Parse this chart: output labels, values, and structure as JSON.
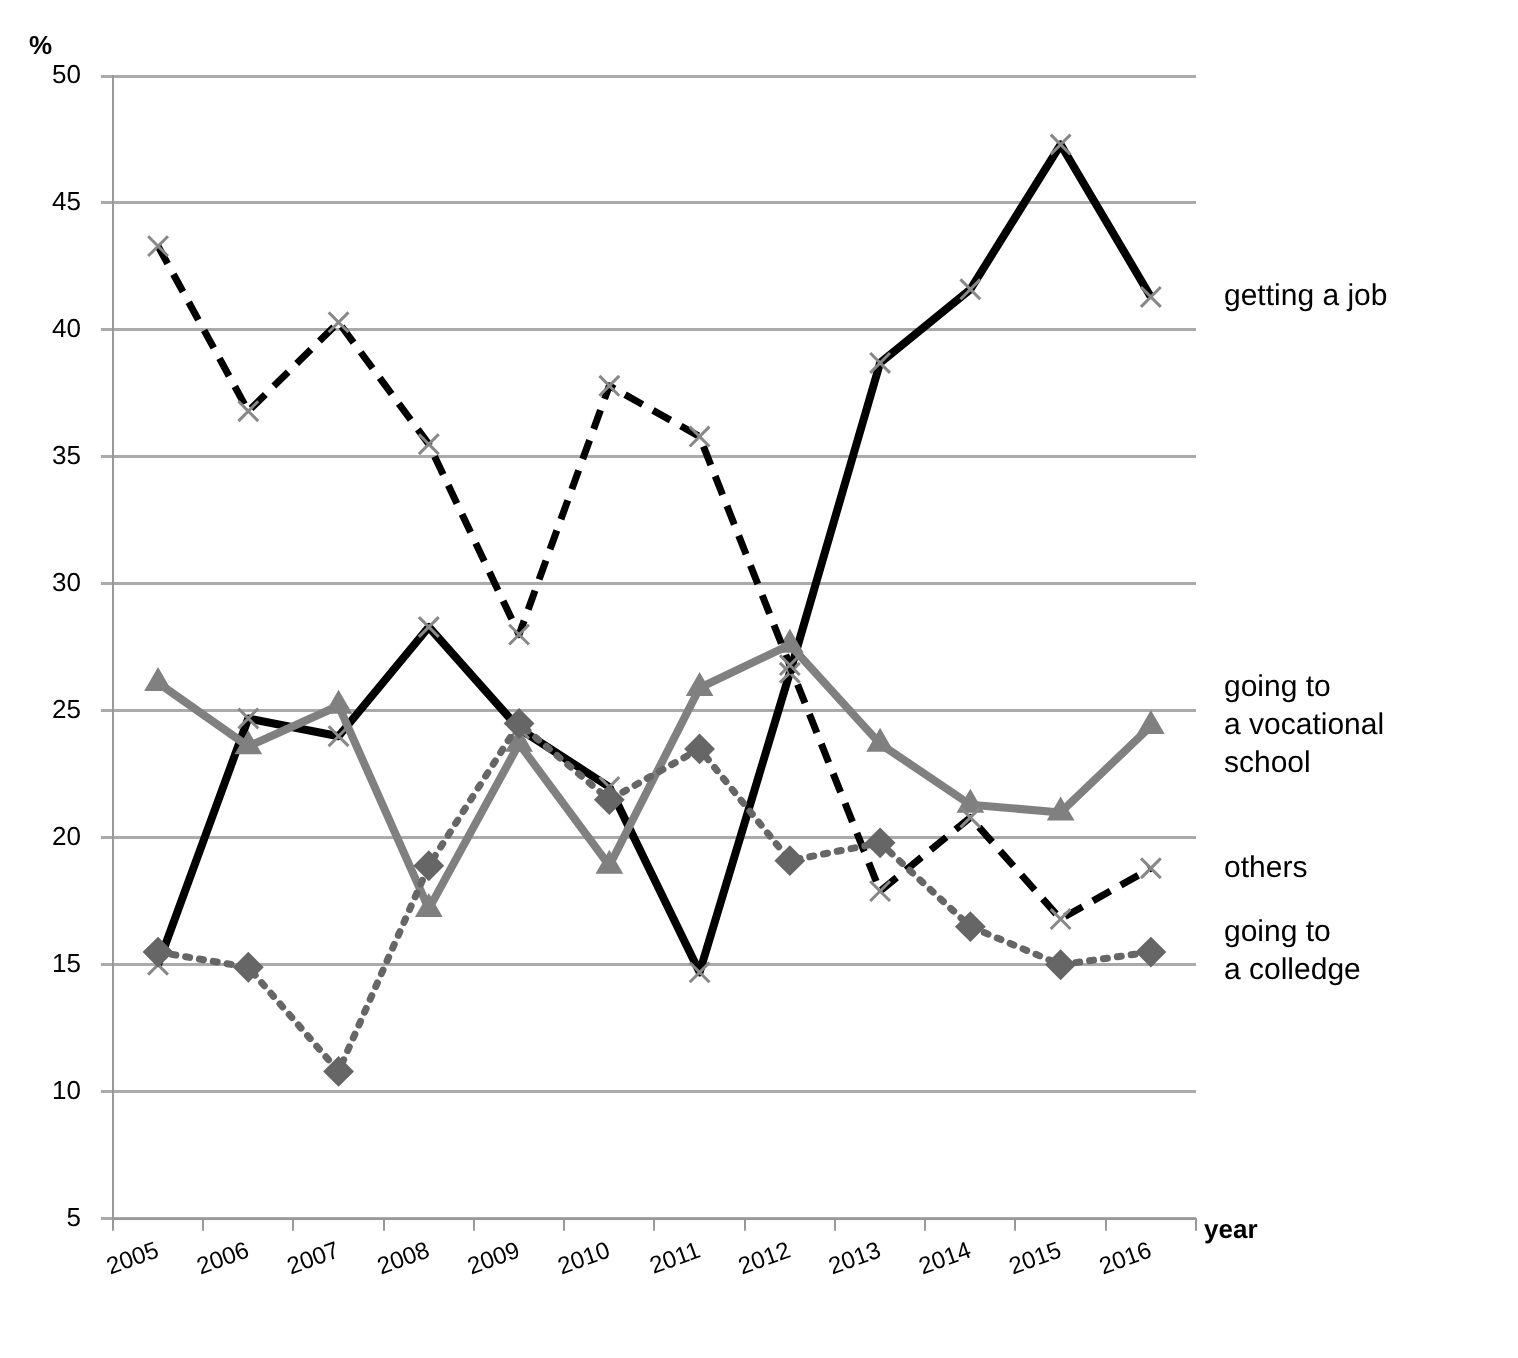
{
  "chart_data": {
    "type": "line",
    "xlabel": "year",
    "ylabel": "%",
    "categories": [
      "2005",
      "2006",
      "2007",
      "2008",
      "2009",
      "2010",
      "2011",
      "2012",
      "2013",
      "2014",
      "2015",
      "2016"
    ],
    "ylim": [
      5,
      50
    ],
    "yticks": [
      5,
      10,
      15,
      20,
      25,
      30,
      35,
      40,
      45,
      50
    ],
    "grid": "y",
    "legend": false,
    "series": [
      {
        "name": "getting a job",
        "color": "#000000",
        "marker": "cross",
        "line_style": "solid",
        "values": [
          15,
          24.7,
          24,
          28.3,
          24.3,
          22,
          14.7,
          26.5,
          38.7,
          41.6,
          47.3,
          41.3
        ]
      },
      {
        "name": "going to\na vocational\nschool",
        "color": "#808080",
        "marker": "triangle",
        "line_style": "solid",
        "values": [
          26.1,
          23.6,
          25.2,
          17.2,
          23.7,
          18.9,
          25.9,
          27.6,
          23.7,
          21.3,
          21,
          24.4
        ]
      },
      {
        "name": "others",
        "color": "#000000",
        "marker": "cross",
        "line_style": "dashed",
        "values": [
          43.3,
          36.8,
          40.3,
          35.5,
          28,
          37.8,
          35.8,
          26.8,
          17.9,
          20.8,
          16.8,
          18.8
        ]
      },
      {
        "name": "going to\na colledge",
        "color": "#666666",
        "marker": "diamond",
        "line_style": "dotted",
        "values": [
          15.5,
          14.9,
          10.8,
          18.9,
          24.5,
          21.5,
          23.5,
          19.1,
          19.8,
          16.5,
          15,
          15.5
        ]
      }
    ]
  }
}
